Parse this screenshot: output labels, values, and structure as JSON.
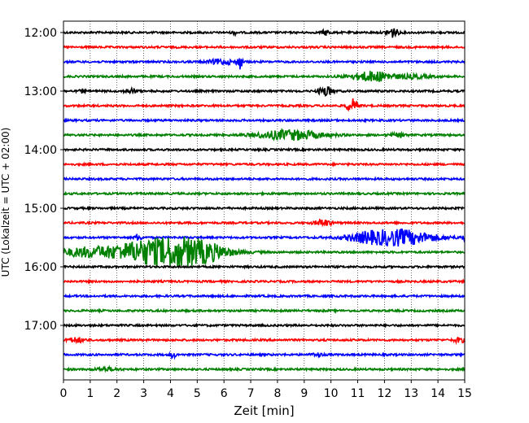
{
  "chart_data": {
    "type": "line",
    "title": "",
    "xlabel": "Zeit  [min]",
    "ylabel": "UTC (Lokalzeit = UTC + 02:00)",
    "xlim": [
      0,
      15
    ],
    "x_ticks": [
      0,
      1,
      2,
      3,
      4,
      5,
      6,
      7,
      8,
      9,
      10,
      11,
      12,
      13,
      14,
      15
    ],
    "y_tick_labels": [
      "12:00",
      "13:00",
      "14:00",
      "15:00",
      "16:00",
      "17:00"
    ],
    "grid": "vertical dotted",
    "trace_start": "12:00",
    "trace_interval_minutes": 15,
    "trace_colors": [
      "#000000",
      "#ff0000",
      "#0000ff",
      "#008000"
    ],
    "traces": [
      {
        "start": "12:00",
        "color": "#000000",
        "events": [
          {
            "t": 12.3,
            "amp": 6,
            "dur": 0.2
          },
          {
            "t": 9.8,
            "amp": 3,
            "dur": 0.15
          },
          {
            "t": 6.4,
            "amp": 2,
            "dur": 0.1
          }
        ]
      },
      {
        "start": "12:15",
        "color": "#ff0000",
        "events": []
      },
      {
        "start": "12:30",
        "color": "#0000ff",
        "events": [
          {
            "t": 6.6,
            "amp": 9,
            "dur": 0.08
          },
          {
            "t": 5.9,
            "amp": 3,
            "dur": 0.5
          }
        ]
      },
      {
        "start": "12:45",
        "color": "#008000",
        "events": [
          {
            "t": 11.6,
            "amp": 6,
            "dur": 0.8
          },
          {
            "t": 13.2,
            "amp": 2,
            "dur": 0.6
          }
        ]
      },
      {
        "start": "13:00",
        "color": "#000000",
        "events": [
          {
            "t": 9.8,
            "amp": 6,
            "dur": 0.25
          },
          {
            "t": 2.5,
            "amp": 3,
            "dur": 0.2
          },
          {
            "t": 0.7,
            "amp": 2,
            "dur": 0.1
          }
        ]
      },
      {
        "start": "13:15",
        "color": "#ff0000",
        "events": [
          {
            "t": 10.8,
            "amp": 8,
            "dur": 0.2
          }
        ]
      },
      {
        "start": "13:30",
        "color": "#0000ff",
        "events": []
      },
      {
        "start": "13:45",
        "color": "#008000",
        "events": [
          {
            "t": 8.5,
            "amp": 6,
            "dur": 1.2
          },
          {
            "t": 12.5,
            "amp": 2,
            "dur": 0.3
          }
        ]
      },
      {
        "start": "14:00",
        "color": "#000000",
        "events": []
      },
      {
        "start": "14:15",
        "color": "#ff0000",
        "events": []
      },
      {
        "start": "14:30",
        "color": "#0000ff",
        "events": []
      },
      {
        "start": "14:45",
        "color": "#008000",
        "events": []
      },
      {
        "start": "15:00",
        "color": "#000000",
        "events": []
      },
      {
        "start": "15:15",
        "color": "#ff0000",
        "events": [
          {
            "t": 9.7,
            "amp": 4,
            "dur": 0.3
          }
        ]
      },
      {
        "start": "15:30",
        "color": "#0000ff",
        "events": [
          {
            "t": 12.4,
            "amp": 10,
            "dur": 1.4
          },
          {
            "t": 2.8,
            "amp": 5,
            "dur": 0.1
          },
          {
            "t": 11.2,
            "amp": 2,
            "dur": 0.5
          },
          {
            "t": 15.0,
            "amp": 4,
            "dur": 0.1
          }
        ]
      },
      {
        "start": "15:45",
        "color": "#008000",
        "events": [
          {
            "t": 3.2,
            "amp": 14,
            "dur": 1.5
          },
          {
            "t": 4.9,
            "amp": 13,
            "dur": 1.2
          },
          {
            "t": 0.8,
            "amp": 5,
            "dur": 1.0
          }
        ]
      },
      {
        "start": "16:00",
        "color": "#000000",
        "events": []
      },
      {
        "start": "16:15",
        "color": "#ff0000",
        "events": []
      },
      {
        "start": "16:30",
        "color": "#0000ff",
        "events": []
      },
      {
        "start": "16:45",
        "color": "#008000",
        "events": []
      },
      {
        "start": "17:00",
        "color": "#000000",
        "events": []
      },
      {
        "start": "17:15",
        "color": "#ff0000",
        "events": [
          {
            "t": 0.5,
            "amp": 3,
            "dur": 0.3
          },
          {
            "t": 14.8,
            "amp": 3,
            "dur": 0.2
          }
        ]
      },
      {
        "start": "17:30",
        "color": "#0000ff",
        "events": [
          {
            "t": 4.1,
            "amp": 4,
            "dur": 0.1
          },
          {
            "t": 9.5,
            "amp": 2,
            "dur": 0.2
          }
        ]
      },
      {
        "start": "17:45",
        "color": "#008000",
        "events": [
          {
            "t": 1.6,
            "amp": 2,
            "dur": 0.4
          }
        ]
      }
    ]
  }
}
